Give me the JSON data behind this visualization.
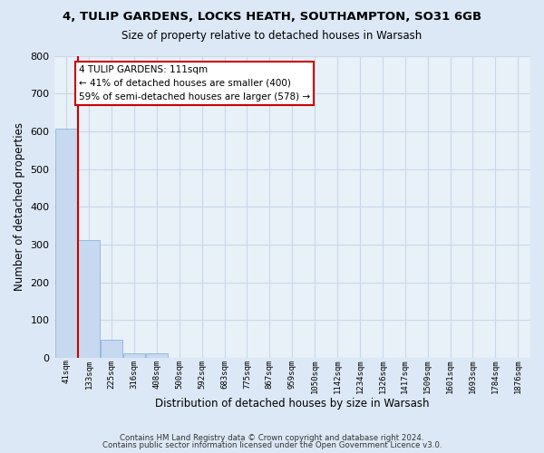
{
  "title": "4, TULIP GARDENS, LOCKS HEATH, SOUTHAMPTON, SO31 6GB",
  "subtitle": "Size of property relative to detached houses in Warsash",
  "xlabel": "Distribution of detached houses by size in Warsash",
  "ylabel": "Number of detached properties",
  "bar_labels": [
    "41sqm",
    "133sqm",
    "225sqm",
    "316sqm",
    "408sqm",
    "500sqm",
    "592sqm",
    "683sqm",
    "775sqm",
    "867sqm",
    "959sqm",
    "1050sqm",
    "1142sqm",
    "1234sqm",
    "1326sqm",
    "1417sqm",
    "1509sqm",
    "1601sqm",
    "1693sqm",
    "1784sqm",
    "1876sqm"
  ],
  "bar_heights": [
    607,
    311,
    49,
    11,
    11,
    0,
    0,
    0,
    0,
    0,
    0,
    0,
    0,
    0,
    0,
    0,
    0,
    0,
    0,
    0,
    0
  ],
  "bar_color": "#c6d9f0",
  "bar_edgecolor": "#8db3d9",
  "ylim": [
    0,
    800
  ],
  "yticks": [
    0,
    100,
    200,
    300,
    400,
    500,
    600,
    700,
    800
  ],
  "property_line_x": 0.5,
  "annotation_title": "4 TULIP GARDENS: 111sqm",
  "annotation_line1": "← 41% of detached houses are smaller (400)",
  "annotation_line2": "59% of semi-detached houses are larger (578) →",
  "annotation_box_color": "#ffffff",
  "annotation_box_edgecolor": "#cc0000",
  "property_line_color": "#cc0000",
  "grid_color": "#c8d8e8",
  "background_color": "#dce8f5",
  "plot_bg_color": "#e8f0f8",
  "footer1": "Contains HM Land Registry data © Crown copyright and database right 2024.",
  "footer2": "Contains public sector information licensed under the Open Government Licence v3.0."
}
